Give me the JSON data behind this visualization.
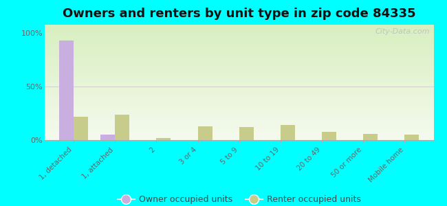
{
  "title": "Owners and renters by unit type in zip code 84335",
  "categories": [
    "1, detached",
    "1, attached",
    "2",
    "3 or 4",
    "5 to 9",
    "10 to 19",
    "20 to 49",
    "50 or more",
    "Mobile home"
  ],
  "owner_values": [
    93,
    5,
    0,
    0,
    0,
    0,
    0,
    0,
    0
  ],
  "renter_values": [
    22,
    24,
    2,
    13,
    12,
    14,
    8,
    6,
    5
  ],
  "owner_color": "#c9aee0",
  "renter_color": "#c8cc8a",
  "background_color": "#00ffff",
  "ylabel_ticks": [
    "0%",
    "50%",
    "100%"
  ],
  "yticks": [
    0,
    50,
    100
  ],
  "ylim": [
    0,
    108
  ],
  "watermark": "City-Data.com",
  "legend_owner": "Owner occupied units",
  "legend_renter": "Renter occupied units",
  "title_fontsize": 13,
  "bar_width": 0.35
}
